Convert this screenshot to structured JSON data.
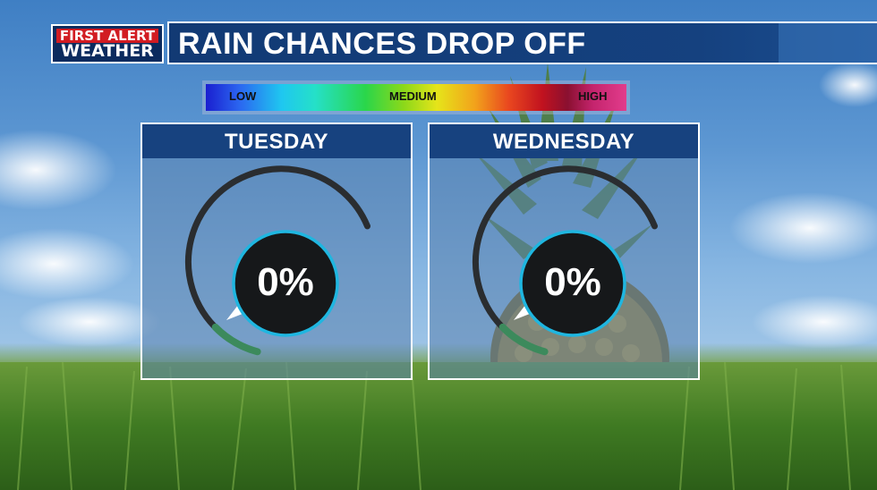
{
  "logo": {
    "line1": "FIRST ALERT",
    "line2": "WEATHER"
  },
  "title": "RAIN CHANCES DROP OFF",
  "legend": {
    "low": "LOW",
    "medium": "MEDIUM",
    "high": "HIGH"
  },
  "days": [
    {
      "name": "TUESDAY",
      "chance_label": "0%",
      "chance": 0
    },
    {
      "name": "WEDNESDAY",
      "chance_label": "0%",
      "chance": 0
    }
  ],
  "colors": {
    "title_bar": "#15417f",
    "logo_red": "#d21c22",
    "ring": "#1fb6e0",
    "gauge_fill": "#3c8a5c"
  }
}
